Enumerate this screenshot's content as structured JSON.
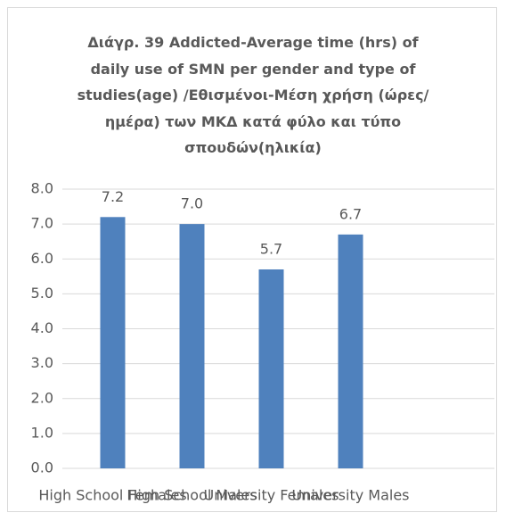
{
  "chart_data": {
    "type": "bar",
    "title": "Διάγρ. 39 Addicted-Average time (hrs) of daily use of SMN per gender and type of studies(age) /Εθισμένοι-Μέση χρήση (ώρες/ημέρα) των ΜΚΔ κατά φύλο και τύπο σπουδών(ηλικία)",
    "categories": [
      "High School Females",
      "High School Males",
      "University Females",
      "University Males"
    ],
    "values": [
      7.2,
      7.0,
      5.7,
      6.7
    ],
    "value_labels": [
      "7.2",
      "7.0",
      "5.7",
      "6.7"
    ],
    "color": "#4f81bd",
    "ylim": [
      0,
      8
    ],
    "yticks": [
      {
        "value": 0,
        "label": "0.0"
      },
      {
        "value": 1,
        "label": "1.0"
      },
      {
        "value": 2,
        "label": "2.0"
      },
      {
        "value": 3,
        "label": "3.0"
      },
      {
        "value": 4,
        "label": "4.0"
      },
      {
        "value": 5,
        "label": "5.0"
      },
      {
        "value": 6,
        "label": "6.0"
      },
      {
        "value": 7,
        "label": "7.0"
      },
      {
        "value": 8,
        "label": "8.0"
      }
    ],
    "grid": true
  }
}
